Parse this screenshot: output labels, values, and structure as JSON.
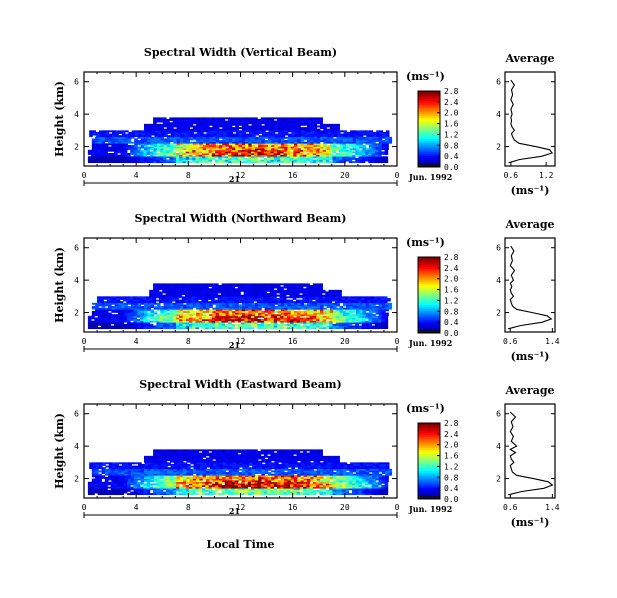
{
  "figure": {
    "xlabel": "Local Time",
    "date_label": "Jun. 1992",
    "day_label": "21",
    "colorbar_unit": "(ms⁻¹)"
  },
  "chart_data": [
    {
      "type": "heatmap",
      "title": "Spectral Width (Vertical Beam)",
      "xlabel": "Local Time",
      "ylabel": "Height (km)",
      "x_ticks": [
        "0",
        "4",
        "8",
        "12",
        "16",
        "20",
        "0"
      ],
      "xlim": [
        0,
        24
      ],
      "y_ticks": [
        "2",
        "4",
        "6"
      ],
      "ylim": [
        0.8,
        6.6
      ],
      "colorbar": {
        "unit": "(ms⁻¹)",
        "ticks": [
          "0.0",
          "0.4",
          "0.8",
          "1.2",
          "1.6",
          "2.0",
          "2.4",
          "2.8"
        ],
        "range": [
          0.0,
          2.8
        ]
      },
      "fields": {
        "band_heights_km": [
          1.2,
          1.6,
          2.0,
          2.4,
          2.8,
          3.2,
          3.6
        ],
        "start_hours": [
          0.3,
          0.3,
          0.6,
          0.6,
          0.4,
          4.6,
          5.3
        ],
        "end_hours": [
          23.2,
          23.2,
          23.3,
          23.5,
          23.4,
          19.6,
          18.3
        ],
        "peak_values_ms": [
          1.0,
          2.2,
          2.0,
          0.6,
          0.4,
          0.3,
          0.3
        ]
      },
      "profile": {
        "title": "Average",
        "xlabel": "(ms⁻¹)",
        "x_ticks": [
          "0.6",
          "1.2"
        ],
        "xlim": [
          0.5,
          1.35
        ],
        "y_ticks": [
          "2",
          "4",
          "6"
        ],
        "ylim": [
          0.8,
          6.6
        ],
        "heights_km": [
          1.0,
          1.2,
          1.4,
          1.6,
          1.8,
          2.0,
          2.2,
          2.4,
          2.6,
          2.8,
          3.0,
          3.2,
          3.4,
          3.6,
          3.8,
          4.0,
          4.3,
          4.6,
          4.9,
          5.2,
          5.5,
          5.8,
          6.1
        ],
        "values": [
          0.56,
          0.75,
          1.12,
          1.3,
          1.26,
          1.02,
          0.74,
          0.66,
          0.63,
          0.61,
          0.66,
          0.62,
          0.6,
          0.61,
          0.6,
          0.62,
          0.6,
          0.64,
          0.6,
          0.63,
          0.61,
          0.66,
          0.6
        ]
      }
    },
    {
      "type": "heatmap",
      "title": "Spectral Width (Northward Beam)",
      "xlabel": "Local Time",
      "ylabel": "Height (km)",
      "x_ticks": [
        "0",
        "4",
        "8",
        "12",
        "16",
        "20",
        "0"
      ],
      "xlim": [
        0,
        24
      ],
      "y_ticks": [
        "2",
        "4",
        "6"
      ],
      "ylim": [
        0.8,
        6.6
      ],
      "colorbar": {
        "unit": "(ms⁻¹)",
        "ticks": [
          "0.0",
          "0.4",
          "0.8",
          "1.2",
          "1.6",
          "2.0",
          "2.4",
          "2.8"
        ],
        "range": [
          0.0,
          2.8
        ]
      },
      "fields": {
        "band_heights_km": [
          1.2,
          1.6,
          2.0,
          2.4,
          2.8,
          3.2,
          3.6
        ],
        "start_hours": [
          0.3,
          0.3,
          0.6,
          0.6,
          1.0,
          5.0,
          5.3
        ],
        "end_hours": [
          23.2,
          23.2,
          23.3,
          23.5,
          23.4,
          19.6,
          18.3
        ],
        "peak_values_ms": [
          1.0,
          2.3,
          2.0,
          0.6,
          0.4,
          0.3,
          0.3
        ]
      },
      "profile": {
        "title": "Average",
        "xlabel": "(ms⁻¹)",
        "x_ticks": [
          "0.6",
          "1.4"
        ],
        "xlim": [
          0.5,
          1.45
        ],
        "y_ticks": [
          "2",
          "4",
          "6"
        ],
        "ylim": [
          0.8,
          6.6
        ],
        "heights_km": [
          1.0,
          1.2,
          1.4,
          1.6,
          1.8,
          2.0,
          2.2,
          2.4,
          2.6,
          2.8,
          3.0,
          3.2,
          3.4,
          3.6,
          3.8,
          4.0,
          4.3,
          4.6,
          4.9,
          5.2,
          5.5,
          5.8,
          6.1
        ],
        "values": [
          0.56,
          0.8,
          1.2,
          1.38,
          1.3,
          1.02,
          0.72,
          0.64,
          0.62,
          0.6,
          0.66,
          0.62,
          0.6,
          0.63,
          0.6,
          0.66,
          0.62,
          0.68,
          0.6,
          0.64,
          0.62,
          0.67,
          0.61
        ]
      }
    },
    {
      "type": "heatmap",
      "title": "Spectral Width (Eastward Beam)",
      "xlabel": "Local Time",
      "ylabel": "Height (km)",
      "x_ticks": [
        "0",
        "4",
        "8",
        "12",
        "16",
        "20",
        "0"
      ],
      "xlim": [
        0,
        24
      ],
      "y_ticks": [
        "2",
        "4",
        "6"
      ],
      "ylim": [
        0.8,
        6.6
      ],
      "colorbar": {
        "unit": "(ms⁻¹)",
        "ticks": [
          "0.0",
          "0.4",
          "0.8",
          "1.2",
          "1.6",
          "2.0",
          "2.4",
          "2.8"
        ],
        "range": [
          0.0,
          2.8
        ]
      },
      "fields": {
        "band_heights_km": [
          1.2,
          1.6,
          2.0,
          2.4,
          2.8,
          3.2,
          3.6
        ],
        "start_hours": [
          0.3,
          0.3,
          0.6,
          0.6,
          0.4,
          4.6,
          5.3
        ],
        "end_hours": [
          23.2,
          23.2,
          23.3,
          23.5,
          23.4,
          19.6,
          18.3
        ],
        "peak_values_ms": [
          1.1,
          2.4,
          2.1,
          0.6,
          0.4,
          0.3,
          0.3
        ]
      },
      "profile": {
        "title": "Average",
        "xlabel": "(ms⁻¹)",
        "x_ticks": [
          "0.6",
          "1.4"
        ],
        "xlim": [
          0.5,
          1.45
        ],
        "y_ticks": [
          "2",
          "4",
          "6"
        ],
        "ylim": [
          0.8,
          6.6
        ],
        "heights_km": [
          1.0,
          1.2,
          1.4,
          1.6,
          1.8,
          2.0,
          2.2,
          2.4,
          2.6,
          2.8,
          3.0,
          3.2,
          3.4,
          3.6,
          3.8,
          4.0,
          4.3,
          4.6,
          4.9,
          5.2,
          5.5,
          5.8,
          6.1
        ],
        "values": [
          0.56,
          0.82,
          1.24,
          1.4,
          1.32,
          1.04,
          0.72,
          0.64,
          0.62,
          0.6,
          0.67,
          0.62,
          0.6,
          0.7,
          0.6,
          0.72,
          0.62,
          0.66,
          0.6,
          0.65,
          0.62,
          0.7,
          0.6
        ]
      }
    }
  ]
}
